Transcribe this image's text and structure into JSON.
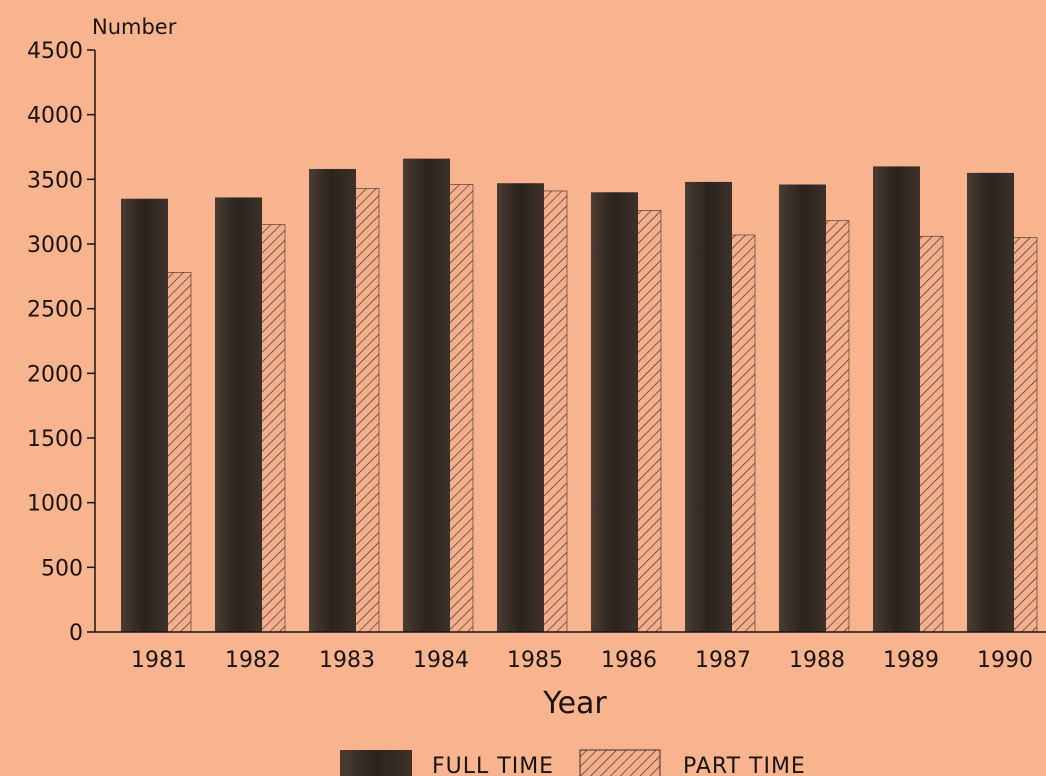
{
  "chart_data": {
    "type": "bar",
    "ylabel": "Number",
    "xlabel": "Year",
    "ylim": [
      0,
      4500
    ],
    "yticks": [
      0,
      500,
      1000,
      1500,
      2000,
      2500,
      3000,
      3500,
      4000,
      4500
    ],
    "categories": [
      "1981",
      "1982",
      "1983",
      "1984",
      "1985",
      "1986",
      "1987",
      "1988",
      "1989",
      "1990"
    ],
    "series": [
      {
        "name": "FULL TIME",
        "values": [
          3350,
          3360,
          3580,
          3660,
          3470,
          3400,
          3480,
          3460,
          3600,
          3550
        ],
        "pattern": "solid-dark"
      },
      {
        "name": "PART TIME",
        "values": [
          2780,
          3150,
          3430,
          3460,
          3410,
          3260,
          3070,
          3180,
          3060,
          3050
        ],
        "pattern": "hatched"
      }
    ],
    "legend_position": "bottom-center",
    "grid": false
  },
  "colors": {
    "background": "#f7b48f",
    "full_time_fill": "#2e2620",
    "part_time_fill": "#f3ae8b",
    "hatch_line": "#3a2e28",
    "axis": "#1a1410"
  }
}
